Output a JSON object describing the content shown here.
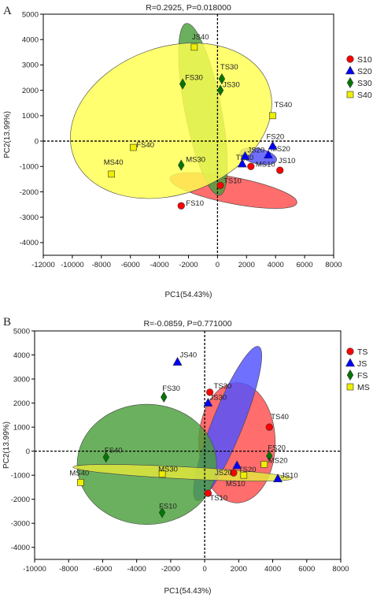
{
  "chart_data": [
    {
      "type": "scatter",
      "panel_label": "A",
      "title": "R=0.2925, P=0.018000",
      "xlabel": "PC1(54.43%)",
      "ylabel": "PC2(13.99%)",
      "xlim": [
        -12000,
        8000
      ],
      "ylim": [
        -4500,
        5000
      ],
      "xticks": [
        -12000,
        -10000,
        -8000,
        -6000,
        -4000,
        -2000,
        0,
        2000,
        4000,
        6000,
        8000
      ],
      "yticks": [
        -4000,
        -3000,
        -2000,
        -1000,
        0,
        1000,
        2000,
        3000,
        4000,
        5000
      ],
      "tick_labels_x": [
        "-12000",
        "-10000",
        "-8000",
        "-6000",
        "-4000",
        "-2000",
        "0",
        "2000",
        "4000",
        "6000",
        "8000"
      ],
      "tick_labels_y": [
        "-4000",
        "-3000",
        "-2000",
        "-1000",
        "0",
        "1000",
        "2000",
        "3000",
        "4000",
        "5000"
      ],
      "grid": false,
      "legend_position": "right",
      "series": [
        {
          "name": "S10",
          "marker": "circle",
          "color": "#ff0000",
          "ellipse_color": "#ff4d4d",
          "ellipse": {
            "cx": 1100,
            "cy": -1950,
            "rx": 4450,
            "ry": 520,
            "angle": -11
          },
          "points": [
            {
              "label": "FS10",
              "x": -2500,
              "y": -2550
            },
            {
              "label": "TS10",
              "x": 200,
              "y": -1750
            },
            {
              "label": "MS10",
              "x": 2300,
              "y": -1000
            },
            {
              "label": "JS10",
              "x": 4300,
              "y": -1150
            }
          ]
        },
        {
          "name": "S20",
          "marker": "triangle",
          "color": "#0000ff",
          "ellipse_color": "#5050ff",
          "ellipse": {
            "cx": 2800,
            "cy": -600,
            "rx": 1300,
            "ry": 300,
            "angle": -12
          },
          "points": [
            {
              "label": "TS20",
              "x": 1700,
              "y": -900
            },
            {
              "label": "JS20",
              "x": 1900,
              "y": -600
            },
            {
              "label": "MS20",
              "x": 3500,
              "y": -550
            },
            {
              "label": "FS20",
              "x": 3800,
              "y": -200
            }
          ]
        },
        {
          "name": "S30",
          "marker": "diamond",
          "color": "#007700",
          "ellipse_color": "#4a9f3a",
          "ellipse": {
            "cx": -1000,
            "cy": 1250,
            "rx": 1250,
            "ry": 3450,
            "angle": 11
          },
          "points": [
            {
              "label": "FS30",
              "x": -2400,
              "y": 2250
            },
            {
              "label": "TS30",
              "x": 300,
              "y": 2450
            },
            {
              "label": "JS30",
              "x": 200,
              "y": 2000
            },
            {
              "label": "MS30",
              "x": -2500,
              "y": -950
            }
          ]
        },
        {
          "name": "S40",
          "marker": "square",
          "color": "#eeee00",
          "ellipse_color": "#ffff50",
          "ellipse": {
            "cx": -3200,
            "cy": 800,
            "rx": 7150,
            "ry": 2900,
            "angle": 20
          },
          "points": [
            {
              "label": "JS40",
              "x": -1600,
              "y": 3700
            },
            {
              "label": "TS40",
              "x": 3800,
              "y": 1000
            },
            {
              "label": "FS40",
              "x": -5800,
              "y": -250
            },
            {
              "label": "MS40",
              "x": -7300,
              "y": -1300
            }
          ]
        }
      ]
    },
    {
      "type": "scatter",
      "panel_label": "B",
      "title": "R=-0.0859, P=0.771000",
      "xlabel": "PC1(54.43%)",
      "ylabel": "PC2(13.99%)",
      "xlim": [
        -10000,
        8000
      ],
      "ylim": [
        -4500,
        5000
      ],
      "xticks": [
        -10000,
        -8000,
        -6000,
        -4000,
        -2000,
        0,
        2000,
        4000,
        6000,
        8000
      ],
      "yticks": [
        -4000,
        -3000,
        -2000,
        -1000,
        0,
        1000,
        2000,
        3000,
        4000,
        5000
      ],
      "tick_labels_x": [
        "-10000",
        "-8000",
        "-6000",
        "-4000",
        "-2000",
        "0",
        "2000",
        "4000",
        "6000",
        "8000"
      ],
      "tick_labels_y": [
        "-4000",
        "-3000",
        "-2000",
        "-1000",
        "0",
        "1000",
        "2000",
        "3000",
        "4000",
        "5000"
      ],
      "grid": false,
      "legend_position": "right",
      "series": [
        {
          "name": "TS",
          "marker": "circle",
          "color": "#ff0000",
          "ellipse_color": "#ff4d4d",
          "ellipse": {
            "cx": 1900,
            "cy": 350,
            "rx": 2250,
            "ry": 2500,
            "angle": 0
          },
          "points": [
            {
              "label": "TS30",
              "x": 300,
              "y": 2450
            },
            {
              "label": "TS40",
              "x": 3800,
              "y": 1000
            },
            {
              "label": "TS20",
              "x": 1700,
              "y": -900
            },
            {
              "label": "TS10",
              "x": 200,
              "y": -1750
            }
          ]
        },
        {
          "name": "JS",
          "marker": "triangle",
          "color": "#0000ff",
          "ellipse_color": "#5050ff",
          "ellipse": {
            "cx": 1350,
            "cy": 1150,
            "rx": 900,
            "ry": 3450,
            "angle": -22
          },
          "points": [
            {
              "label": "JS40",
              "x": -1600,
              "y": 3700
            },
            {
              "label": "JS30",
              "x": 200,
              "y": 2000
            },
            {
              "label": "JS20",
              "x": 1900,
              "y": -600
            },
            {
              "label": "JS10",
              "x": 4300,
              "y": -1150
            }
          ]
        },
        {
          "name": "FS",
          "marker": "diamond",
          "color": "#007700",
          "ellipse_color": "#4a9f3a",
          "ellipse": {
            "cx": -3400,
            "cy": -550,
            "rx": 4100,
            "ry": 2500,
            "angle": 0
          },
          "points": [
            {
              "label": "FS30",
              "x": -2400,
              "y": 2250
            },
            {
              "label": "FS40",
              "x": -5800,
              "y": -250
            },
            {
              "label": "FS20",
              "x": 3800,
              "y": -200
            },
            {
              "label": "FS10",
              "x": -2500,
              "y": -2550
            }
          ]
        },
        {
          "name": "MS",
          "marker": "square",
          "color": "#eeee00",
          "ellipse_color": "#e4e83a",
          "ellipse": {
            "cx": -1300,
            "cy": -900,
            "rx": 6450,
            "ry": 250,
            "angle": -3
          },
          "points": [
            {
              "label": "MS30",
              "x": -2500,
              "y": -950
            },
            {
              "label": "MS40",
              "x": -7300,
              "y": -1300
            },
            {
              "label": "MS20",
              "x": 3500,
              "y": -550
            },
            {
              "label": "MS10",
              "x": 2300,
              "y": -1000
            }
          ]
        }
      ]
    }
  ]
}
